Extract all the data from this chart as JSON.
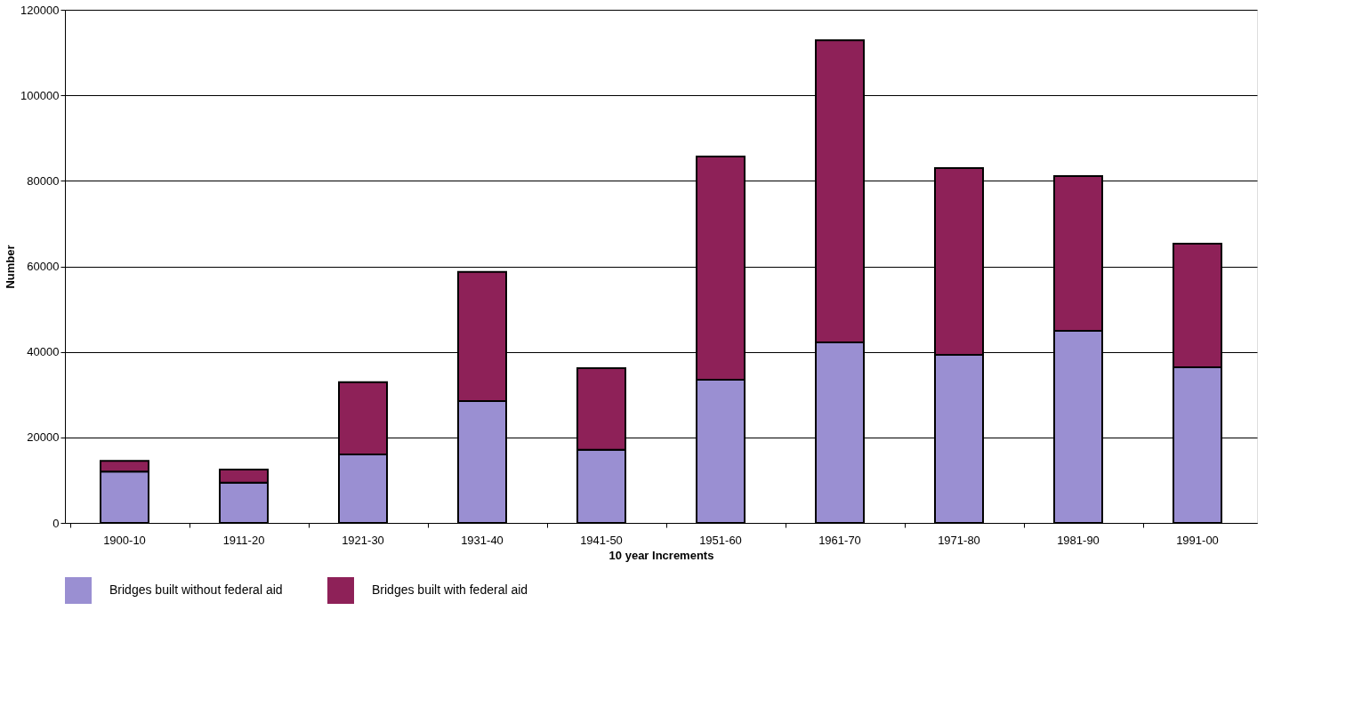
{
  "chart_data": {
    "type": "bar",
    "stacked": true,
    "xlabel": "10 year Increments",
    "ylabel": "Number",
    "categories": [
      "1900-10",
      "1911-20",
      "1921-30",
      "1931-40",
      "1941-50",
      "1951-60",
      "1961-70",
      "1971-80",
      "1981-90",
      "1991-00"
    ],
    "series": [
      {
        "name": "Bridges built without federal aid",
        "color": "#9a8fd2",
        "values": [
          12000,
          9400,
          16000,
          28500,
          17100,
          33500,
          42200,
          39300,
          44900,
          36400
        ]
      },
      {
        "name": "Bridges built with federal aid",
        "color": "#8e2158",
        "values": [
          2500,
          3100,
          16900,
          30200,
          19100,
          52200,
          70700,
          43700,
          36200,
          28900
        ]
      }
    ],
    "ylim": [
      0,
      120000
    ],
    "yticks": [
      0,
      20000,
      40000,
      60000,
      80000,
      100000,
      120000
    ],
    "grid": "y",
    "legend": "bottom"
  }
}
